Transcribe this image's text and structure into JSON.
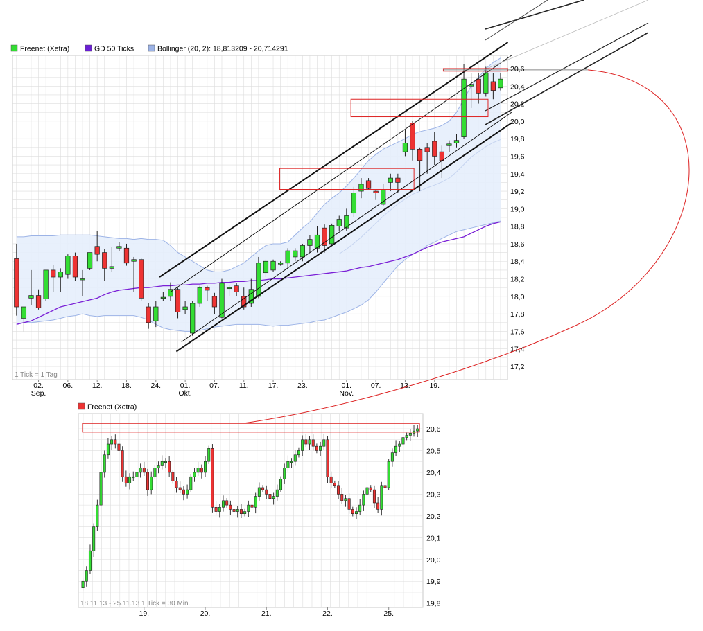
{
  "colors": {
    "up": "#33dd33",
    "down": "#ee3333",
    "ma": "#7a1fd6",
    "band_fill": "#e6eefc",
    "band_line": "#9cb3e6",
    "grid": "#dddddd",
    "annotation": "#dd2222",
    "trendline": "#111111"
  },
  "chart_data": [
    {
      "type": "candlestick",
      "legend": [
        {
          "label": "Freenet (Xetra)",
          "swatch": "#33dd33"
        },
        {
          "label": "GD 50 Ticks",
          "swatch": "#6b1fd6"
        },
        {
          "label": "Bollinger (20, 2): 18,813209 - 20,714291",
          "swatch": "#9cb3e6"
        }
      ],
      "note": "1 Tick = 1 Tag",
      "ylim": [
        17.05,
        20.75
      ],
      "y_ticks": [
        "17,2",
        "17,4",
        "17,6",
        "17,8",
        "18,0",
        "18,2",
        "18,4",
        "18,6",
        "18,8",
        "19,0",
        "19,2",
        "19,4",
        "19,6",
        "19,8",
        "20,0",
        "20,2",
        "20,4",
        "20,6"
      ],
      "x_ticks": [
        {
          "i": 3,
          "label": "02."
        },
        {
          "i": 7,
          "label": "06."
        },
        {
          "i": 11,
          "label": "12."
        },
        {
          "i": 15,
          "label": "18."
        },
        {
          "i": 19,
          "label": "24."
        },
        {
          "i": 23,
          "label": "01."
        },
        {
          "i": 27,
          "label": "07."
        },
        {
          "i": 31,
          "label": "11."
        },
        {
          "i": 35,
          "label": "17."
        },
        {
          "i": 39,
          "label": "23."
        },
        {
          "i": 45,
          "label": "01."
        },
        {
          "i": 49,
          "label": "07."
        },
        {
          "i": 53,
          "label": "13."
        },
        {
          "i": 57,
          "label": "19."
        }
      ],
      "month_labels": [
        {
          "i": 3,
          "label": "Sep."
        },
        {
          "i": 23,
          "label": "Okt."
        },
        {
          "i": 45,
          "label": "Nov."
        }
      ],
      "candles": [
        {
          "o": 18.43,
          "h": 18.6,
          "l": 17.78,
          "c": 17.88
        },
        {
          "o": 17.75,
          "h": 17.88,
          "l": 17.6,
          "c": 17.88
        },
        {
          "o": 17.98,
          "h": 18.3,
          "l": 17.9,
          "c": 18.01
        },
        {
          "o": 18.01,
          "h": 18.08,
          "l": 17.85,
          "c": 17.87
        },
        {
          "o": 17.97,
          "h": 18.3,
          "l": 17.95,
          "c": 18.3
        },
        {
          "o": 18.3,
          "h": 18.36,
          "l": 18.05,
          "c": 18.22
        },
        {
          "o": 18.22,
          "h": 18.32,
          "l": 18.05,
          "c": 18.28
        },
        {
          "o": 18.25,
          "h": 18.48,
          "l": 18.2,
          "c": 18.46
        },
        {
          "o": 18.46,
          "h": 18.5,
          "l": 18.18,
          "c": 18.22
        },
        {
          "o": 18.2,
          "h": 18.3,
          "l": 18.0,
          "c": 18.2
        },
        {
          "o": 18.32,
          "h": 18.5,
          "l": 18.3,
          "c": 18.5
        },
        {
          "o": 18.57,
          "h": 18.75,
          "l": 18.4,
          "c": 18.48
        },
        {
          "o": 18.5,
          "h": 18.54,
          "l": 18.18,
          "c": 18.32
        },
        {
          "o": 18.32,
          "h": 18.56,
          "l": 18.28,
          "c": 18.34
        },
        {
          "o": 18.55,
          "h": 18.62,
          "l": 18.52,
          "c": 18.57
        },
        {
          "o": 18.55,
          "h": 18.6,
          "l": 18.35,
          "c": 18.38
        },
        {
          "o": 18.4,
          "h": 18.45,
          "l": 18.05,
          "c": 18.42
        },
        {
          "o": 18.42,
          "h": 18.44,
          "l": 17.95,
          "c": 17.98
        },
        {
          "o": 17.88,
          "h": 17.92,
          "l": 17.63,
          "c": 17.7
        },
        {
          "o": 17.72,
          "h": 17.95,
          "l": 17.65,
          "c": 17.88
        },
        {
          "o": 17.98,
          "h": 18.05,
          "l": 17.95,
          "c": 17.99
        },
        {
          "o": 18.0,
          "h": 18.16,
          "l": 17.95,
          "c": 18.08
        },
        {
          "o": 18.08,
          "h": 18.1,
          "l": 17.75,
          "c": 17.82
        },
        {
          "o": 17.85,
          "h": 17.95,
          "l": 17.8,
          "c": 17.88
        },
        {
          "o": 17.58,
          "h": 17.95,
          "l": 17.55,
          "c": 17.92
        },
        {
          "o": 17.92,
          "h": 18.12,
          "l": 17.88,
          "c": 18.1
        },
        {
          "o": 18.1,
          "h": 18.12,
          "l": 17.95,
          "c": 18.07
        },
        {
          "o": 18.0,
          "h": 18.04,
          "l": 17.8,
          "c": 17.88
        },
        {
          "o": 17.76,
          "h": 18.2,
          "l": 17.75,
          "c": 18.15
        },
        {
          "o": 18.1,
          "h": 18.13,
          "l": 18.0,
          "c": 18.1
        },
        {
          "o": 18.12,
          "h": 18.15,
          "l": 18.0,
          "c": 18.05
        },
        {
          "o": 18.0,
          "h": 18.1,
          "l": 17.85,
          "c": 17.88
        },
        {
          "o": 17.92,
          "h": 18.2,
          "l": 17.88,
          "c": 18.08
        },
        {
          "o": 18.0,
          "h": 18.45,
          "l": 17.98,
          "c": 18.38
        },
        {
          "o": 18.27,
          "h": 18.42,
          "l": 18.22,
          "c": 18.4
        },
        {
          "o": 18.3,
          "h": 18.42,
          "l": 18.28,
          "c": 18.4
        },
        {
          "o": 18.37,
          "h": 18.4,
          "l": 18.35,
          "c": 18.38
        },
        {
          "o": 18.38,
          "h": 18.55,
          "l": 18.32,
          "c": 18.52
        },
        {
          "o": 18.45,
          "h": 18.55,
          "l": 18.4,
          "c": 18.52
        },
        {
          "o": 18.45,
          "h": 18.6,
          "l": 18.4,
          "c": 18.58
        },
        {
          "o": 18.58,
          "h": 18.7,
          "l": 18.5,
          "c": 18.65
        },
        {
          "o": 18.55,
          "h": 18.8,
          "l": 18.5,
          "c": 18.7
        },
        {
          "o": 18.78,
          "h": 18.82,
          "l": 18.5,
          "c": 18.58
        },
        {
          "o": 18.6,
          "h": 18.83,
          "l": 18.58,
          "c": 18.81
        },
        {
          "o": 18.8,
          "h": 18.92,
          "l": 18.75,
          "c": 18.88
        },
        {
          "o": 18.78,
          "h": 19.0,
          "l": 18.75,
          "c": 18.92
        },
        {
          "o": 18.95,
          "h": 19.25,
          "l": 18.9,
          "c": 19.18
        },
        {
          "o": 19.2,
          "h": 19.35,
          "l": 19.12,
          "c": 19.28
        },
        {
          "o": 19.32,
          "h": 19.35,
          "l": 19.22,
          "c": 19.23
        },
        {
          "o": 19.2,
          "h": 19.22,
          "l": 19.1,
          "c": 19.18
        },
        {
          "o": 19.05,
          "h": 19.28,
          "l": 19.03,
          "c": 19.22
        },
        {
          "o": 19.3,
          "h": 19.4,
          "l": 19.2,
          "c": 19.35
        },
        {
          "o": 19.35,
          "h": 19.4,
          "l": 19.18,
          "c": 19.3
        },
        {
          "o": 19.65,
          "h": 19.9,
          "l": 19.6,
          "c": 19.75
        },
        {
          "o": 19.98,
          "h": 20.0,
          "l": 19.55,
          "c": 19.68
        },
        {
          "o": 19.68,
          "h": 19.7,
          "l": 19.2,
          "c": 19.55
        },
        {
          "o": 19.7,
          "h": 19.75,
          "l": 19.4,
          "c": 19.65
        },
        {
          "o": 19.77,
          "h": 19.88,
          "l": 19.5,
          "c": 19.6
        },
        {
          "o": 19.65,
          "h": 19.72,
          "l": 19.35,
          "c": 19.55
        },
        {
          "o": 19.72,
          "h": 19.78,
          "l": 19.65,
          "c": 19.74
        },
        {
          "o": 19.75,
          "h": 19.85,
          "l": 19.7,
          "c": 19.78
        },
        {
          "o": 19.82,
          "h": 20.65,
          "l": 19.8,
          "c": 20.48
        },
        {
          "o": 20.4,
          "h": 20.55,
          "l": 20.15,
          "c": 20.42
        },
        {
          "o": 20.48,
          "h": 20.55,
          "l": 20.2,
          "c": 20.32
        },
        {
          "o": 20.32,
          "h": 20.62,
          "l": 20.28,
          "c": 20.55
        },
        {
          "o": 20.45,
          "h": 20.55,
          "l": 20.25,
          "c": 20.35
        },
        {
          "o": 20.38,
          "h": 20.55,
          "l": 20.35,
          "c": 20.48
        }
      ],
      "ma_gd50": [
        17.68,
        17.7,
        17.72,
        17.76,
        17.8,
        17.84,
        17.88,
        17.9,
        17.92,
        17.94,
        17.96,
        17.98,
        18.02,
        18.05,
        18.07,
        18.08,
        18.09,
        18.1,
        18.1,
        18.11,
        18.12,
        18.12,
        18.13,
        18.13,
        18.14,
        18.14,
        18.15,
        18.15,
        18.16,
        18.16,
        18.17,
        18.17,
        18.18,
        18.18,
        18.19,
        18.2,
        18.2,
        18.21,
        18.22,
        18.23,
        18.24,
        18.25,
        18.26,
        18.27,
        18.28,
        18.29,
        18.31,
        18.33,
        18.34,
        18.36,
        18.38,
        18.4,
        18.42,
        18.45,
        18.48,
        18.52,
        18.56,
        18.59,
        18.62,
        18.64,
        18.66,
        18.68,
        18.72,
        18.76,
        18.8,
        18.83,
        18.85
      ],
      "bb_upper": [
        18.68,
        18.68,
        18.69,
        18.69,
        18.69,
        18.69,
        18.7,
        18.7,
        18.7,
        18.7,
        18.7,
        18.69,
        18.68,
        18.67,
        18.66,
        18.66,
        18.65,
        18.66,
        18.65,
        18.65,
        18.64,
        18.58,
        18.5,
        18.45,
        18.4,
        18.35,
        18.3,
        18.28,
        18.28,
        18.3,
        18.34,
        18.38,
        18.45,
        18.52,
        18.58,
        18.6,
        18.6,
        18.62,
        18.7,
        18.78,
        18.85,
        18.95,
        19.05,
        19.12,
        19.18,
        19.26,
        19.35,
        19.45,
        19.55,
        19.62,
        19.68,
        19.72,
        19.76,
        19.8,
        19.85,
        19.88,
        19.9,
        19.92,
        19.95,
        20.0,
        20.1,
        20.25,
        20.4,
        20.5,
        20.6,
        20.67,
        20.72
      ],
      "bb_lower": [
        17.68,
        17.7,
        17.7,
        17.71,
        17.72,
        17.73,
        17.75,
        17.77,
        17.78,
        17.8,
        17.78,
        17.77,
        17.78,
        17.78,
        17.78,
        17.78,
        17.78,
        17.76,
        17.73,
        17.68,
        17.64,
        17.62,
        17.61,
        17.6,
        17.6,
        17.61,
        17.63,
        17.65,
        17.66,
        17.67,
        17.68,
        17.68,
        17.68,
        17.68,
        17.67,
        17.66,
        17.67,
        17.67,
        17.68,
        17.69,
        17.7,
        17.72,
        17.73,
        17.76,
        17.79,
        17.82,
        17.86,
        17.9,
        17.96,
        18.05,
        18.15,
        18.25,
        18.35,
        18.42,
        18.48,
        18.52,
        18.58,
        18.62,
        18.66,
        18.7,
        18.74,
        18.76,
        18.78,
        18.8,
        18.82,
        18.84,
        18.86
      ],
      "bb_mid_from": 44,
      "channel_lines": [
        {
          "x1": 19.5,
          "y1": 18.22,
          "x2": 67.0,
          "y2": 20.9,
          "weight": "bold"
        },
        {
          "x1": 21.0,
          "y1": 18.05,
          "x2": 67.5,
          "y2": 20.75,
          "weight": "thin"
        },
        {
          "x1": 21.8,
          "y1": 17.37,
          "x2": 67.5,
          "y2": 19.98,
          "weight": "bold"
        },
        {
          "x1": 22.5,
          "y1": 17.48,
          "x2": 67.5,
          "y2": 20.1,
          "weight": "thin"
        }
      ],
      "boxes": [
        {
          "x1": 35.9,
          "x2": 54.2,
          "y1": 19.46,
          "y2": 19.22
        },
        {
          "x1": 45.6,
          "x2": 64.3,
          "y1": 20.25,
          "y2": 20.05
        },
        {
          "x1": 58.2,
          "x2": 67.0,
          "y1": 20.6,
          "y2": 20.57
        }
      ]
    },
    {
      "type": "candlestick",
      "legend": [
        {
          "label": "Freenet (Xetra)",
          "swatch": "#ee3333"
        }
      ],
      "note": "18.11.13 - 25.11.13   1 Tick = 30 Min.",
      "ylim": [
        19.78,
        20.67
      ],
      "y_ticks": [
        "19,8",
        "19,9",
        "20,0",
        "20,1",
        "20,2",
        "20,3",
        "20,4",
        "20,5",
        "20,6"
      ],
      "x_ticks": [
        {
          "i": 17,
          "label": "19."
        },
        {
          "i": 34,
          "label": "20."
        },
        {
          "i": 51,
          "label": "21."
        },
        {
          "i": 68,
          "label": "22."
        },
        {
          "i": 85,
          "label": "25."
        }
      ],
      "closes": [
        19.9,
        19.95,
        20.04,
        20.15,
        20.25,
        20.4,
        20.48,
        20.53,
        20.55,
        20.53,
        20.5,
        20.38,
        20.35,
        20.38,
        20.38,
        20.4,
        20.42,
        20.4,
        20.32,
        20.38,
        20.42,
        20.43,
        20.45,
        20.45,
        20.4,
        20.36,
        20.33,
        20.32,
        20.3,
        20.32,
        20.38,
        20.4,
        20.42,
        20.4,
        20.45,
        20.51,
        20.24,
        20.22,
        20.24,
        20.27,
        20.25,
        20.23,
        20.22,
        20.23,
        20.21,
        20.22,
        20.25,
        20.24,
        20.29,
        20.33,
        20.32,
        20.3,
        20.28,
        20.29,
        20.32,
        20.37,
        20.42,
        20.45,
        20.45,
        20.48,
        20.5,
        20.55,
        20.53,
        20.55,
        20.52,
        20.5,
        20.52,
        20.55,
        20.38,
        20.35,
        20.34,
        20.3,
        20.27,
        20.28,
        20.23,
        20.21,
        20.22,
        20.25,
        20.3,
        20.33,
        20.32,
        20.26,
        20.23,
        20.34,
        20.33,
        20.45,
        20.49,
        20.52,
        20.53,
        20.56,
        20.57,
        20.58,
        20.59,
        20.6
      ],
      "highlight_box": {
        "y1": 20.625,
        "y2": 20.585
      },
      "connector_y": 20.625
    }
  ]
}
